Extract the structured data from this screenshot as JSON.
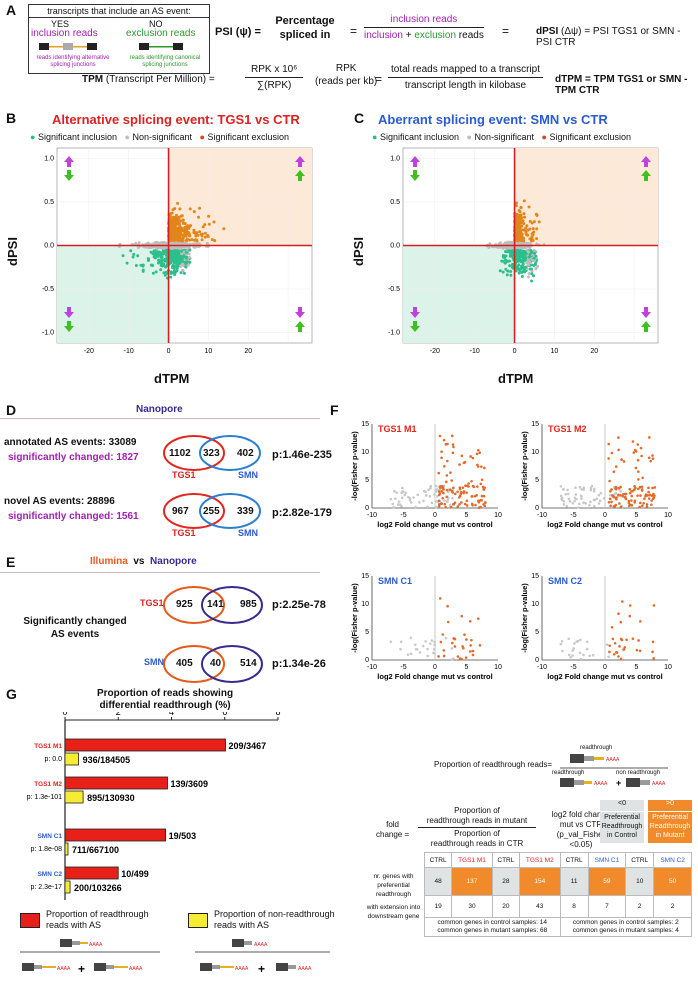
{
  "panel_letters": {
    "a": "A",
    "b": "B",
    "c": "C",
    "d": "D",
    "e": "E",
    "f": "F",
    "g": "G"
  },
  "panelA": {
    "box_title": "transcripts that include an AS event:",
    "yes": "YES",
    "no": "NO",
    "inclusion_reads": "inclusion reads",
    "exclusion_reads": "exclusion reads",
    "inc_note": "reads identifying alternative splicing junctions",
    "exc_note": "reads identifying canonical splicing junctions",
    "psi_label": "PSI (ψ) =",
    "psi_desc_1": "Percentage",
    "psi_desc_2": "spliced in",
    "eq": "=",
    "psi_num": "inclusion reads",
    "psi_den_1": "inclusion",
    "psi_den_plus": " + ",
    "psi_den_2": "exclusion",
    "psi_den_3": " reads",
    "dpsi_lhs": "dPSI",
    "dpsi_mid": "(Δψ)",
    "dpsi_rhs": "= PSI TGS1 or SMN - PSI CTR",
    "tpm_label": "TPM",
    "tpm_desc": "(Transcript Per Million) =",
    "tpm_num": "RPK x 10⁶",
    "tpm_den": "∑(RPK)",
    "rpk_1": "RPK",
    "rpk_2": "(reads per kb)",
    "rpk_num": "total reads mapped to a transcript",
    "rpk_den": "transcript length in kilobase",
    "dtpm": "dTPM = TPM TGS1 or SMN - TPM CTR"
  },
  "panelB": {
    "title": "Alternative splicing event: TGS1 vs CTR",
    "legend": [
      "Significant inclusion",
      "Non-significant",
      "Significant exclusion"
    ],
    "xlabel": "dTPM",
    "ylabel": "dPSI",
    "xticks": [
      "-20",
      "-10",
      "0",
      "10",
      "20"
    ],
    "yticks": [
      "1.0",
      "0.5",
      "0.0",
      "-0.5",
      "-1.0"
    ]
  },
  "panelC": {
    "title": "Aberrant splicing event: SMN vs CTR",
    "legend": [
      "Significant inclusion",
      "Non-significant",
      "Significant exclusion"
    ],
    "xlabel": "dTPM",
    "ylabel": "dPSI",
    "xticks": [
      "-20",
      "-10",
      "0",
      "10",
      "20"
    ],
    "yticks": [
      "1.0",
      "0.5",
      "0.0",
      "-0.5",
      "-1.0"
    ]
  },
  "colors": {
    "inclusion": "#2bbf8c",
    "nonsig": "#bdbdbd",
    "exclusion": "#e2851a",
    "axisline": "#d42020",
    "tgs1": "#e2251f",
    "smn": "#2a7fd0",
    "nanopore": "#3a2a8f"
  },
  "panelD": {
    "header": "Nanopore",
    "annotated": "annotated AS events: 33089",
    "annotated_sig": "significantly changed: 1827",
    "v1": [
      "1102",
      "323",
      "402"
    ],
    "p1": "p:1.46e-235",
    "novel": "novel AS events: 28896",
    "novel_sig": "significantly changed: 1561",
    "v2": [
      "967",
      "255",
      "339"
    ],
    "p2": "p:2.82e-179",
    "tgs1": "TGS1",
    "smn": "SMN"
  },
  "panelE": {
    "illumina": "Illumina",
    "vs": "vs",
    "nanopore": "Nanopore",
    "sig_1": "Significantly changed",
    "sig_2": "AS events",
    "tgs1": "TGS1",
    "smn": "SMN",
    "v1": [
      "925",
      "141",
      "985"
    ],
    "p1": "p:2.25e-78",
    "v2": [
      "405",
      "40",
      "514"
    ],
    "p2": "p:1.34e-26"
  },
  "panelF": {
    "plots": [
      {
        "title": "TGS1  M1"
      },
      {
        "title": "TGS1  M2"
      },
      {
        "title": "SMN C1"
      },
      {
        "title": "SMN C2"
      }
    ],
    "ylabel": "-log(Fisher p-value)",
    "xlabel": "log2 Fold change mut vs control",
    "xticks": [
      "-10",
      "-5",
      "0",
      "5",
      "10"
    ],
    "yticks": [
      "15",
      "10",
      "5",
      "0"
    ],
    "prop_label": "Proportion of readthrough reads=",
    "readthrough": "readthrough",
    "non_readthrough": "non readthrough",
    "fc_label_1": "fold",
    "fc_label_2": "change =",
    "fc_num_1": "Proportion of",
    "fc_num_2": "readthrough reads in mutant",
    "fc_den_1": "Proportion of",
    "fc_den_2": "readthrough reads in CTR",
    "log2_1": "log2 fold change",
    "log2_2": "mut vs CTR",
    "log2_3": "(p_val_Fisher",
    "log2_4": "<0.05)",
    "lt0": "<0",
    "gt0": ">0",
    "pref_ctrl": "Preferential Readthrough in Control",
    "pref_mut": "Preferential Readthrough in Mutant",
    "table_header": [
      "CTRL",
      "TGS1 M1",
      "CTRL",
      "TGS1 M2",
      "CTRL",
      "SMN C1",
      "CTRL",
      "SMN C2"
    ],
    "row1_label": "nr. genes with preferential readthrough",
    "row1": [
      "48",
      "137",
      "28",
      "154",
      "11",
      "59",
      "10",
      "50"
    ],
    "row2_label": "with extension into downstream gene",
    "row2": [
      "19",
      "30",
      "20",
      "43",
      "8",
      "7",
      "2",
      "2"
    ],
    "common_tgs1_ctrl": "common genes in control samples: 14",
    "common_tgs1_mut": "common genes in mutant samples: 68",
    "common_smn_ctrl": "common genes in control samples: 2",
    "common_smn_mut": "common genes in mutant samples: 4"
  },
  "panelG": {
    "title_1": "Proportion of reads showing",
    "title_2": "differential readthrough (%)",
    "xticks": [
      "0",
      "2",
      "4",
      "6",
      "8"
    ],
    "legend_red": "Proportion of readthrough reads with AS",
    "legend_yellow": "Proportion of  non-readthrough reads with AS",
    "tail": "AAAA"
  },
  "chart_data": [
    {
      "type": "bar",
      "title": "Proportion of reads showing differential readthrough (%)",
      "categories": [
        "TGS1 M1",
        "TGS1 M2",
        "SMN C1",
        "SMN C2"
      ],
      "xlim": [
        0,
        8
      ],
      "series": [
        {
          "name": "Proportion of readthrough reads with AS",
          "values": [
            6.03,
            3.85,
            3.78,
            2.0
          ],
          "labels": [
            "209/3467",
            "139/3609",
            "19/503",
            "10/499"
          ]
        },
        {
          "name": "Proportion of non-readthrough reads with AS",
          "values": [
            0.51,
            0.68,
            0.11,
            0.19
          ],
          "labels": [
            "936/184505",
            "895/130930",
            "711/667100",
            "200/103266"
          ]
        }
      ],
      "pvalues": [
        "p: 0.0",
        "p: 1.3e-101",
        "p: 1.8e-08",
        "p: 2.3e-17"
      ]
    }
  ]
}
